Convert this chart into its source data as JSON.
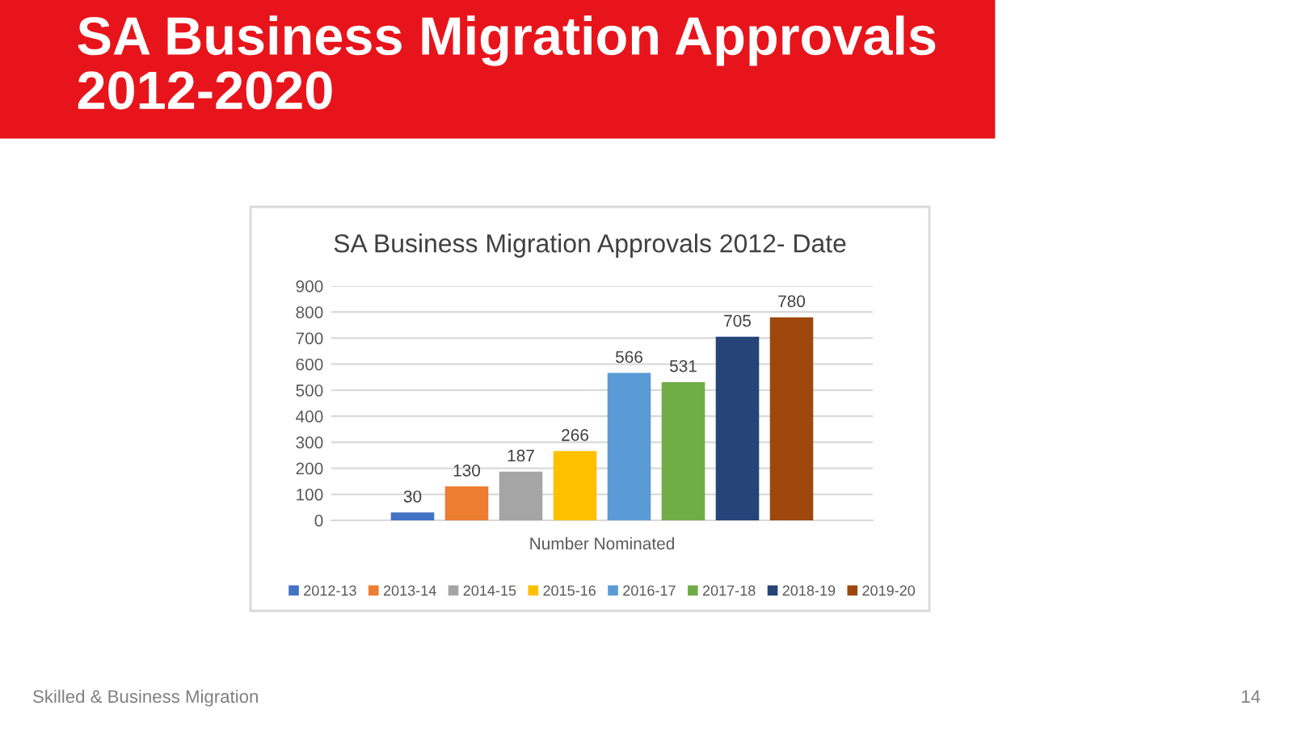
{
  "chart_data": {
    "type": "bar",
    "title": "SA Business Migration Approvals 2012-2020",
    "subtitle": "SA Business Migration Approvals 2012- Date",
    "xlabel": "Number Nominated",
    "categories": [
      null
    ],
    "series": [
      {
        "name": "2012-13",
        "color": "#4472c4",
        "values": [
          30
        ]
      },
      {
        "name": "2013-14",
        "color": "#ed7d31",
        "values": [
          130
        ]
      },
      {
        "name": "2014-15",
        "color": "#a5a5a5",
        "values": [
          187
        ]
      },
      {
        "name": "2015-16",
        "color": "#ffc000",
        "values": [
          266
        ]
      },
      {
        "name": "2016-17",
        "color": "#5b9bd5",
        "values": [
          566
        ]
      },
      {
        "name": "2017-18",
        "color": "#70ad47",
        "values": [
          531
        ]
      },
      {
        "name": "2018-19",
        "color": "#264478",
        "values": [
          705
        ]
      },
      {
        "name": "2019-20",
        "color": "#9e480e",
        "values": [
          780
        ]
      }
    ],
    "ylim": [
      0,
      900
    ],
    "yticks": [
      0,
      100,
      200,
      300,
      400,
      500,
      600,
      700,
      800,
      900
    ],
    "grid": "y",
    "legend": "bottom",
    "data_labels": true,
    "annotations": [
      "Skilled & Business Migration",
      "14"
    ]
  }
}
